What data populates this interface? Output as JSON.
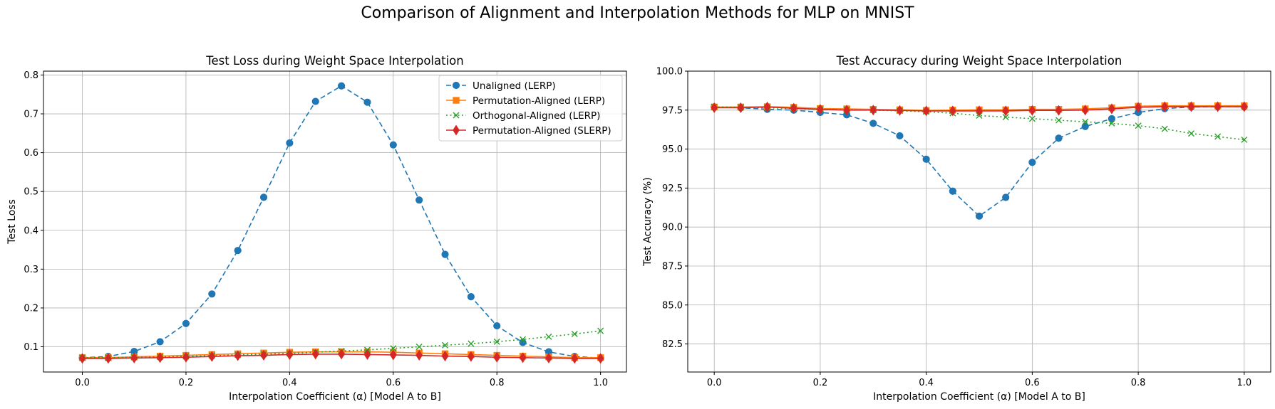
{
  "figure": {
    "suptitle": "Comparison of Alignment and Interpolation Methods for MLP on MNIST"
  },
  "chart_data": [
    {
      "type": "line",
      "title": "Test Loss during Weight Space Interpolation",
      "xlabel": "Interpolation Coefficient (α) [Model A to B]",
      "ylabel": "Test Loss",
      "xlim": [
        -0.075,
        1.05
      ],
      "ylim": [
        0.035,
        0.81
      ],
      "xticks": [
        0.0,
        0.2,
        0.4,
        0.6,
        0.8,
        1.0
      ],
      "xtick_labels": [
        "0.0",
        "0.2",
        "0.4",
        "0.6",
        "0.8",
        "1.0"
      ],
      "yticks": [
        0.1,
        0.2,
        0.3,
        0.4,
        0.5,
        0.6,
        0.7,
        0.8
      ],
      "ytick_labels": [
        "0.1",
        "0.2",
        "0.3",
        "0.4",
        "0.5",
        "0.6",
        "0.7",
        "0.8"
      ],
      "grid": true,
      "legend_position": "top-right",
      "x": [
        0.0,
        0.05,
        0.1,
        0.15,
        0.2,
        0.25,
        0.3,
        0.35,
        0.4,
        0.45,
        0.5,
        0.55,
        0.6,
        0.65,
        0.7,
        0.75,
        0.8,
        0.85,
        0.9,
        0.95,
        1.0
      ],
      "series": [
        {
          "name": "Unaligned (LERP)",
          "color": "#1f77b4",
          "linestyle": "dashed",
          "marker": "circle",
          "values": [
            0.072,
            0.075,
            0.088,
            0.113,
            0.16,
            0.236,
            0.348,
            0.485,
            0.625,
            0.732,
            0.772,
            0.73,
            0.62,
            0.478,
            0.338,
            0.229,
            0.154,
            0.111,
            0.087,
            0.075,
            0.071
          ]
        },
        {
          "name": "Permutation-Aligned (LERP)",
          "color": "#ff7f0e",
          "linestyle": "solid",
          "marker": "square",
          "values": [
            0.072,
            0.072,
            0.074,
            0.076,
            0.078,
            0.08,
            0.082,
            0.084,
            0.086,
            0.087,
            0.087,
            0.087,
            0.086,
            0.084,
            0.082,
            0.08,
            0.078,
            0.076,
            0.074,
            0.072,
            0.072
          ]
        },
        {
          "name": "Orthogonal-Aligned (LERP)",
          "color": "#2ca02c",
          "linestyle": "dotted",
          "marker": "x",
          "values": [
            0.072,
            0.072,
            0.073,
            0.074,
            0.075,
            0.077,
            0.079,
            0.081,
            0.083,
            0.086,
            0.089,
            0.092,
            0.096,
            0.1,
            0.104,
            0.108,
            0.113,
            0.119,
            0.126,
            0.133,
            0.141
          ]
        },
        {
          "name": "Permutation-Aligned (SLERP)",
          "color": "#d62728",
          "linestyle": "solid",
          "marker": "diamond",
          "values": [
            0.07,
            0.07,
            0.071,
            0.072,
            0.073,
            0.075,
            0.077,
            0.078,
            0.08,
            0.081,
            0.081,
            0.08,
            0.079,
            0.078,
            0.076,
            0.075,
            0.073,
            0.072,
            0.071,
            0.07,
            0.07
          ]
        }
      ]
    },
    {
      "type": "line",
      "title": "Test Accuracy during Weight Space Interpolation",
      "xlabel": "Interpolation Coefficient (α) [Model A to B]",
      "ylabel": "Test Accuracy (%)",
      "xlim": [
        -0.05,
        1.05
      ],
      "ylim": [
        80.7,
        100.0
      ],
      "xticks": [
        0.0,
        0.2,
        0.4,
        0.6,
        0.8,
        1.0
      ],
      "xtick_labels": [
        "0.0",
        "0.2",
        "0.4",
        "0.6",
        "0.8",
        "1.0"
      ],
      "yticks": [
        82.5,
        85.0,
        87.5,
        90.0,
        92.5,
        95.0,
        97.5,
        100.0
      ],
      "ytick_labels": [
        "82.5",
        "85.0",
        "87.5",
        "90.0",
        "92.5",
        "95.0",
        "97.5",
        "100.0"
      ],
      "grid": true,
      "x": [
        0.0,
        0.05,
        0.1,
        0.15,
        0.2,
        0.25,
        0.3,
        0.35,
        0.4,
        0.45,
        0.5,
        0.55,
        0.6,
        0.65,
        0.7,
        0.75,
        0.8,
        0.85,
        0.9,
        0.95,
        1.0
      ],
      "series": [
        {
          "name": "Unaligned (LERP)",
          "color": "#1f77b4",
          "linestyle": "dashed",
          "marker": "circle",
          "values": [
            97.7,
            97.65,
            97.55,
            97.5,
            97.35,
            97.2,
            96.65,
            95.85,
            94.35,
            92.3,
            90.7,
            91.9,
            94.15,
            95.7,
            96.45,
            96.95,
            97.35,
            97.6,
            97.7,
            97.72,
            97.72
          ]
        },
        {
          "name": "Permutation-Aligned (LERP)",
          "color": "#ff7f0e",
          "linestyle": "solid",
          "marker": "square",
          "values": [
            97.7,
            97.7,
            97.72,
            97.68,
            97.6,
            97.58,
            97.55,
            97.52,
            97.48,
            97.5,
            97.52,
            97.52,
            97.55,
            97.55,
            97.58,
            97.65,
            97.75,
            97.78,
            97.78,
            97.78,
            97.78
          ]
        },
        {
          "name": "Orthogonal-Aligned (LERP)",
          "color": "#2ca02c",
          "linestyle": "dotted",
          "marker": "x",
          "values": [
            97.7,
            97.68,
            97.65,
            97.6,
            97.55,
            97.52,
            97.5,
            97.45,
            97.4,
            97.3,
            97.15,
            97.05,
            96.95,
            96.85,
            96.75,
            96.65,
            96.5,
            96.3,
            96.0,
            95.8,
            95.6
          ]
        },
        {
          "name": "Permutation-Aligned (SLERP)",
          "color": "#d62728",
          "linestyle": "solid",
          "marker": "diamond",
          "values": [
            97.65,
            97.65,
            97.7,
            97.62,
            97.55,
            97.5,
            97.5,
            97.48,
            97.45,
            97.45,
            97.45,
            97.45,
            97.48,
            97.48,
            97.5,
            97.58,
            97.68,
            97.72,
            97.72,
            97.72,
            97.72
          ]
        }
      ]
    }
  ]
}
